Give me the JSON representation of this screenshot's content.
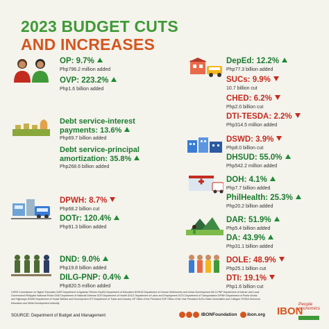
{
  "title": {
    "line1": "2023 BUDGET CUTS",
    "line2": "AND INCREASES"
  },
  "entries": {
    "op": {
      "label": "OP: 9.7%",
      "sub": "Php796.2 million added"
    },
    "ovp": {
      "label": "OVP: 223.2%",
      "sub": "Php1.6 billion added"
    },
    "dsi": {
      "line1": "Debt service-interest",
      "line2": "payments: 13.6%",
      "sub": "Php69.7 billion added"
    },
    "dsp": {
      "line1": "Debt service-principal",
      "line2": "amortization: 35.8%",
      "sub": "Php268.6 billion added"
    },
    "dpwh": {
      "label": "DPWH: 8.7%",
      "sub": "Php68.2 billion cut"
    },
    "dotr": {
      "label": "DOTr: 120.4%",
      "sub": "Php91.3 billion added"
    },
    "dnd": {
      "label": "DND: 9.0%",
      "sub": "Php19.8 billion added"
    },
    "dilg": {
      "label": "DILG-PNP: 0.4%",
      "sub": "Php820.5 million added"
    },
    "deped": {
      "label": "DepEd: 12.2%",
      "sub": "Php77.3 billion added"
    },
    "sucs": {
      "label": "SUCs: 9.9%",
      "sub": "10.7 billion cut"
    },
    "ched": {
      "label": "CHED: 6.2%",
      "sub": "Php2.0 billion cut"
    },
    "tesda": {
      "label": "DTI-TESDA: 2.2%",
      "sub": "Php314.5 million added"
    },
    "dswd": {
      "label": "DSWD: 3.9%",
      "sub": "Php8.0 billion cut"
    },
    "dhsud": {
      "label": "DHSUD: 55.0%",
      "sub": "Php542.2 million added"
    },
    "doh": {
      "label": "DOH: 4.1%",
      "sub": "Php7.7 billion added"
    },
    "philhealth": {
      "label": "PhilHealth: 25.3%",
      "sub": "Php20.2 billion added"
    },
    "dar": {
      "label": "DAR: 51.9%",
      "sub": "Php5.4 billion added"
    },
    "da": {
      "label": "DA: 43.9%",
      "sub": "Php31.1 billion added"
    },
    "dole": {
      "label": "DOLE: 48.9%",
      "sub": "Php25.1 billion cut"
    },
    "dti": {
      "label": "DTI: 19.1%",
      "sub": "Php1.6 billion cut"
    }
  },
  "footer": {
    "notes": "CHED Commission on Higher Education  DAR Department of Agrarian Reform  DepEd Department of Education  DHSUD Department of Human Settlements and Urban Development  DILG-PNP Department of Interior and Local Government-Philippine National Police  DND Department of National Defense  DOH Department of Health  DOLE Department of Labor and Employment  DOTr Department of Transportation  DPWH Department of Public Works and Highways  DSWD Department of Social Welfare and Development  DTI Department of Trade and Industry  OP Office of the President  OVP Office of the Vice President  SUCs State Universities and Colleges  TESDA Technical Education and Skills Development Authority",
    "source": "SOURCE: Department of Budget and Management",
    "social_handle": "IBONFoundation",
    "website": "ibon.org",
    "brand": "IBON",
    "partner_line1": "People",
    "partner_line2": "economics"
  },
  "colors": {
    "increase": "#1b7a2f",
    "decrease": "#c42b1f",
    "title_green": "#3f9a37",
    "title_orange": "#d5551f"
  }
}
